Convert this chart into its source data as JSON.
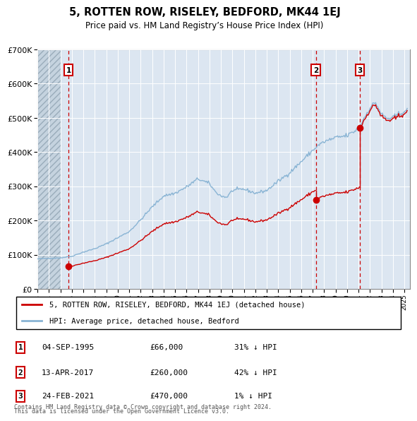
{
  "title": "5, ROTTEN ROW, RISELEY, BEDFORD, MK44 1EJ",
  "subtitle": "Price paid vs. HM Land Registry’s House Price Index (HPI)",
  "transactions": [
    {
      "num": 1,
      "date": "04-SEP-1995",
      "year": 1995.71,
      "price": 66000,
      "pct": "31% ↓ HPI"
    },
    {
      "num": 2,
      "date": "13-APR-2017",
      "year": 2017.28,
      "price": 260000,
      "pct": "42% ↓ HPI"
    },
    {
      "num": 3,
      "date": "24-FEB-2021",
      "year": 2021.12,
      "price": 470000,
      "pct": "1% ↓ HPI"
    }
  ],
  "legend_line1": "5, ROTTEN ROW, RISELEY, BEDFORD, MK44 1EJ (detached house)",
  "legend_line2": "HPI: Average price, detached house, Bedford",
  "footer1": "Contains HM Land Registry data © Crown copyright and database right 2024.",
  "footer2": "This data is licensed under the Open Government Licence v3.0.",
  "ylim": [
    0,
    700000
  ],
  "xlim_start": 1993.0,
  "xlim_end": 2025.5,
  "hatch_end": 1995.0,
  "red_color": "#cc0000",
  "blue_color": "#89b4d4",
  "bg_color": "#dce6f1",
  "grid_color": "#ffffff",
  "box_color": "#cc0000"
}
